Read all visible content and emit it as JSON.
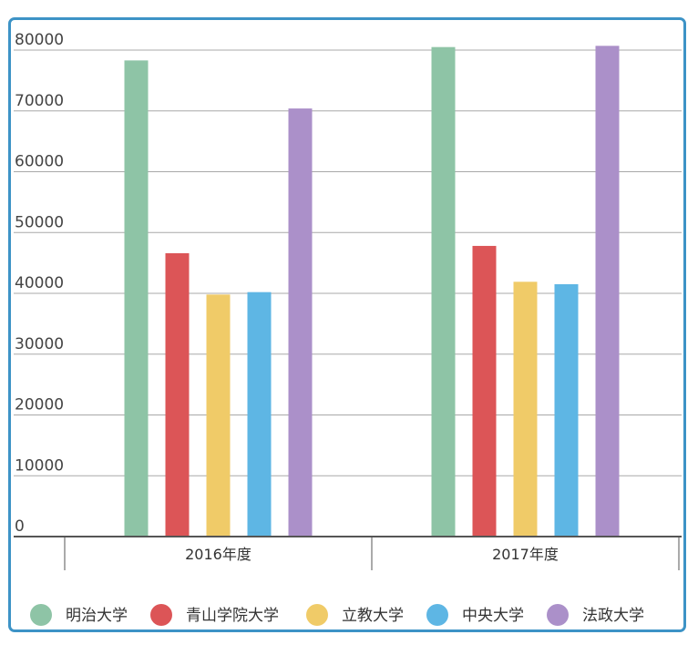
{
  "chart_data": {
    "type": "bar",
    "categories": [
      "2016年度",
      "2017年度"
    ],
    "ylim": [
      0,
      80000
    ],
    "y_ticks": [
      "0",
      "10000",
      "20000",
      "30000",
      "40000",
      "50000",
      "60000",
      "70000",
      "80000"
    ],
    "grid": true,
    "legend_position": "bottom",
    "series": [
      {
        "name": "明治大学",
        "color": "#8ec4a6",
        "values": [
          78300,
          80500
        ]
      },
      {
        "name": "青山学院大学",
        "color": "#dc5557",
        "values": [
          46600,
          47800
        ]
      },
      {
        "name": "立教大学",
        "color": "#f0cb68",
        "values": [
          39800,
          41900
        ]
      },
      {
        "name": "中央大学",
        "color": "#5eb6e4",
        "values": [
          40200,
          41500
        ]
      },
      {
        "name": "法政大学",
        "color": "#ab90c9",
        "values": [
          70400,
          80700
        ]
      }
    ]
  }
}
